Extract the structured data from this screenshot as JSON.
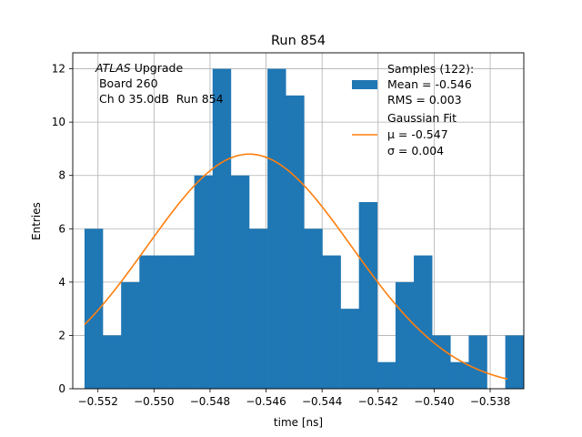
{
  "chart_data": {
    "type": "bar",
    "title": "Run 854",
    "xlabel": "time [ns]",
    "ylabel": "Entries",
    "xlim": [
      -0.5529,
      -0.5368
    ],
    "ylim": [
      0,
      12.6
    ],
    "grid": true,
    "legend_placement": "top-right",
    "xticks": [
      -0.552,
      -0.55,
      -0.548,
      -0.546,
      -0.544,
      -0.542,
      -0.54,
      -0.538
    ],
    "xtick_labels": [
      "−0.552",
      "−0.550",
      "−0.548",
      "−0.546",
      "−0.544",
      "−0.542",
      "−0.540",
      "−0.538"
    ],
    "yticks": [
      0,
      2,
      4,
      6,
      8,
      10,
      12
    ],
    "ytick_labels": [
      "0",
      "2",
      "4",
      "6",
      "8",
      "10",
      "12"
    ],
    "bins": {
      "start": -0.55248,
      "width": 0.000653,
      "counts": [
        6,
        2,
        4,
        5,
        5,
        5,
        8,
        12,
        8,
        6,
        12,
        11,
        6,
        5,
        3,
        7,
        1,
        4,
        5,
        2,
        1,
        2,
        0,
        2
      ]
    },
    "series": [
      {
        "name": "Samples",
        "kind": "histogram",
        "color": "#1f77b4",
        "legend_lines": [
          "Samples (122):",
          "Mean = -0.546",
          "RMS = 0.003"
        ]
      },
      {
        "name": "Gaussian Fit",
        "kind": "line",
        "color": "#ff7f0e",
        "amplitude": 8.8,
        "mu": -0.5466,
        "sigma": 0.00365,
        "x_range": [
          -0.55248,
          -0.53738
        ],
        "legend_lines": [
          "Gaussian Fit",
          "μ = -0.547",
          "σ = 0.004"
        ]
      }
    ],
    "annotation": {
      "lines": [
        "ATLAS Upgrade",
        " Board 260",
        " Ch 0 35.0dB  Run 854"
      ]
    }
  }
}
